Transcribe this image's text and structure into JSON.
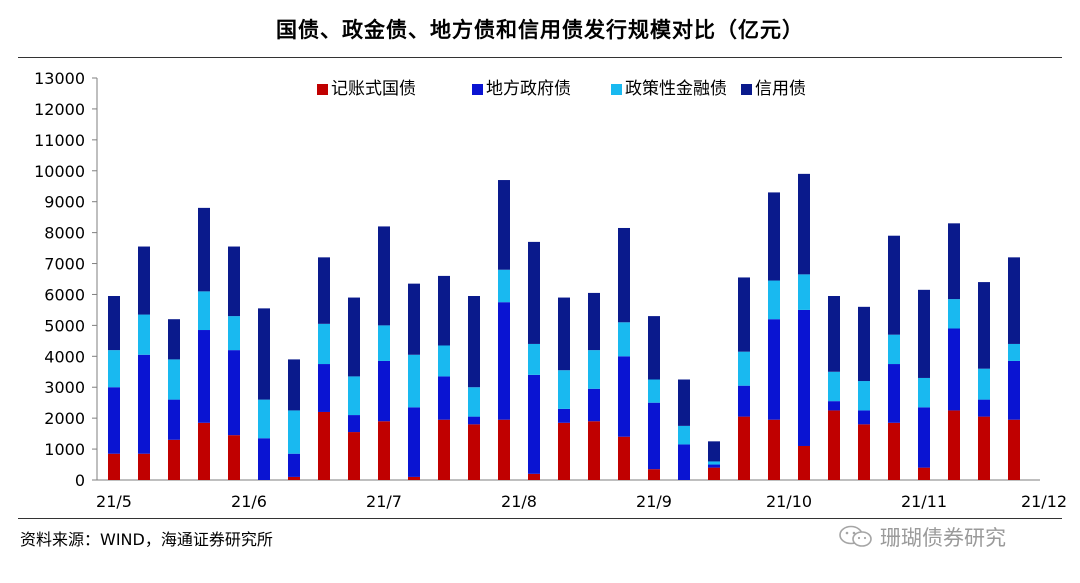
{
  "page": {
    "title": "国债、政金债、地方债和信用债发行规模对比（亿元）",
    "source": "资料来源：WIND，海通证券研究所",
    "watermark": "珊瑚债券研究"
  },
  "chart_data": {
    "type": "bar",
    "stacked": true,
    "title": "国债、政金债、地方债和信用债发行规模对比（亿元）",
    "xlabel": "",
    "ylabel": "",
    "ylim": [
      0,
      13000
    ],
    "yticks": [
      0,
      1000,
      2000,
      3000,
      4000,
      5000,
      6000,
      7000,
      8000,
      9000,
      10000,
      11000,
      12000,
      13000
    ],
    "grid": false,
    "legend_position": "top",
    "x_tick_labels": [
      {
        "index": 0,
        "label": "21/5"
      },
      {
        "index": 4.5,
        "label": "21/6"
      },
      {
        "index": 9,
        "label": "21/7"
      },
      {
        "index": 13.5,
        "label": "21/8"
      },
      {
        "index": 18,
        "label": "21/9"
      },
      {
        "index": 22.5,
        "label": "21/10"
      },
      {
        "index": 27,
        "label": "21/11"
      },
      {
        "index": 31,
        "label": "21/12"
      }
    ],
    "series": [
      {
        "name": "记账式国债",
        "color": "#c00000",
        "values": [
          850,
          850,
          1300,
          1850,
          1450,
          0,
          100,
          2200,
          1550,
          1900,
          100,
          1950,
          1800,
          1950,
          200,
          1850,
          1900,
          1400,
          350,
          0,
          400,
          2050,
          1950,
          1100,
          2250,
          1800,
          1850,
          400,
          2250,
          2050,
          1950
        ]
      },
      {
        "name": "地方政府债",
        "color": "#0a14d2",
        "values": [
          2150,
          3200,
          1300,
          3000,
          2750,
          1350,
          750,
          1550,
          550,
          1950,
          2250,
          1400,
          250,
          3800,
          3200,
          450,
          1050,
          2600,
          2150,
          1150,
          100,
          1000,
          3250,
          4400,
          300,
          450,
          1900,
          1950,
          2650,
          550,
          1900
        ]
      },
      {
        "name": "政策性金融债",
        "color": "#19b9f0",
        "values": [
          1200,
          1300,
          1300,
          1250,
          1100,
          1250,
          1400,
          1300,
          1250,
          1150,
          1700,
          1000,
          950,
          1050,
          1000,
          1250,
          1250,
          1100,
          750,
          600,
          100,
          1100,
          1250,
          1150,
          950,
          950,
          950,
          950,
          950,
          1000,
          550
        ]
      },
      {
        "name": "信用债",
        "color": "#0a1a8c",
        "values": [
          1750,
          2200,
          1300,
          2700,
          2250,
          2950,
          1650,
          2150,
          2550,
          3200,
          2300,
          2250,
          2950,
          2900,
          3300,
          2350,
          1850,
          3050,
          2050,
          1500,
          650,
          2400,
          2850,
          3250,
          2450,
          2400,
          3200,
          2850,
          2450,
          2800,
          2800
        ]
      }
    ]
  }
}
